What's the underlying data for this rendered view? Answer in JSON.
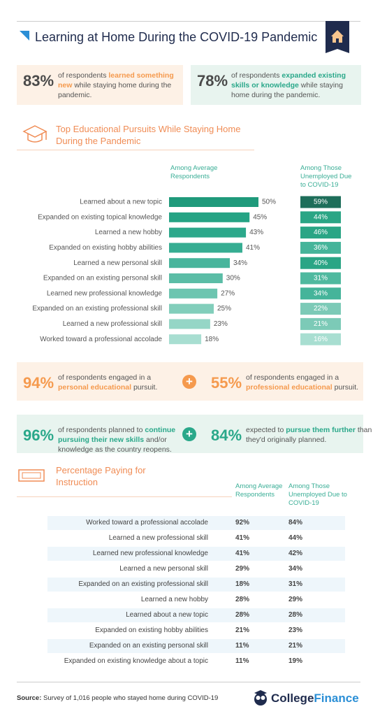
{
  "header": {
    "title": "Learning at Home During the COVID-19 Pandemic"
  },
  "stats": [
    {
      "value": "83%",
      "value_color": "#4a4a4a",
      "accent_color": "#f59a4e",
      "text": [
        "of respondents ",
        "learned something new",
        " while staying home during the pandemic."
      ]
    },
    {
      "value": "78%",
      "value_color": "#4a4a4a",
      "accent_color": "#2aa88a",
      "text": [
        "of respondents ",
        "expanded existing skills or knowledge",
        " while staying home during the pandemic."
      ]
    },
    {
      "value": "94%",
      "value_color": "#f59a4e",
      "accent_color": "#f59a4e",
      "text": [
        "of respondents engaged in a ",
        "personal educational",
        " pursuit."
      ]
    },
    {
      "value": "55%",
      "value_color": "#f59a4e",
      "accent_color": "#f59a4e",
      "text": [
        "of respondents engaged in a ",
        "professional educational",
        " pursuit."
      ]
    },
    {
      "value": "96%",
      "value_color": "#2aa88a",
      "accent_color": "#2aa88a",
      "text": [
        "of respondents planned to ",
        "continue pursuing their new skills",
        " and/or knowledge as the country reopens."
      ]
    },
    {
      "value": "84%",
      "value_color": "#2aa88a",
      "accent_color": "#2aa88a",
      "text": [
        "expected to ",
        "pursue them further",
        " than they'd originally planned."
      ]
    }
  ],
  "chart_data": {
    "type": "bar",
    "title": "Top Educational Pursuits While Staying Home During the Pandemic",
    "categories": [
      "Learned about a new topic",
      "Expanded on existing topical knowledge",
      "Learned a new hobby",
      "Expanded on existing hobby abilities",
      "Learned a new personal skill",
      "Expanded on an existing personal skill",
      "Learned new professional knowledge",
      "Expanded on an existing professional skill",
      "Learned a new professional skill",
      "Worked toward a professional accolade"
    ],
    "series": [
      {
        "name": "Among Average Respondents",
        "values": [
          50,
          45,
          43,
          41,
          34,
          30,
          27,
          25,
          23,
          18
        ],
        "value_labels": [
          "50%",
          "45%",
          "43%",
          "41%",
          "34%",
          "30%",
          "27%",
          "25%",
          "23%",
          "18%"
        ],
        "colors": [
          "#1f9a7b",
          "#25a384",
          "#2ca88b",
          "#36ad92",
          "#48b59c",
          "#5bbda6",
          "#6dc5b0",
          "#82cebb",
          "#95d6c6",
          "#a8ded1"
        ]
      },
      {
        "name": "Among Those Unemployed Due to COVID-19",
        "values": [
          59,
          44,
          46,
          36,
          40,
          31,
          34,
          22,
          21,
          16
        ],
        "value_labels": [
          "59%",
          "44%",
          "46%",
          "36%",
          "40%",
          "31%",
          "34%",
          "22%",
          "21%",
          "16%"
        ],
        "colors": [
          "#1e6e5a",
          "#2aa585",
          "#2aa585",
          "#45b49a",
          "#2aa585",
          "#4fb99f",
          "#45b49a",
          "#7ccab7",
          "#7ccab7",
          "#a8ded1"
        ]
      }
    ]
  },
  "table": {
    "title": "Percentage Paying for Instruction",
    "columns": [
      "Among Average Respondents",
      "Among Those Unemployed Due to COVID-19"
    ],
    "rows": [
      [
        "Worked toward a professional accolade",
        "92%",
        "84%"
      ],
      [
        "Learned a new professional skill",
        "41%",
        "44%"
      ],
      [
        "Learned new professional knowledge",
        "41%",
        "42%"
      ],
      [
        "Learned a new personal skill",
        "29%",
        "34%"
      ],
      [
        "Expanded on an existing professional skill",
        "18%",
        "31%"
      ],
      [
        "Learned a new hobby",
        "28%",
        "29%"
      ],
      [
        "Learned about a new topic",
        "28%",
        "28%"
      ],
      [
        "Expanded on existing hobby abilities",
        "21%",
        "23%"
      ],
      [
        "Expanded on an existing personal skill",
        "11%",
        "21%"
      ],
      [
        "Expanded on existing knowledge about a topic",
        "11%",
        "19%"
      ]
    ]
  },
  "footer": {
    "source_label": "Source:",
    "source": "Survey of 1,016 people who stayed home during COVID-19",
    "brand": [
      "College",
      "Finance"
    ]
  }
}
